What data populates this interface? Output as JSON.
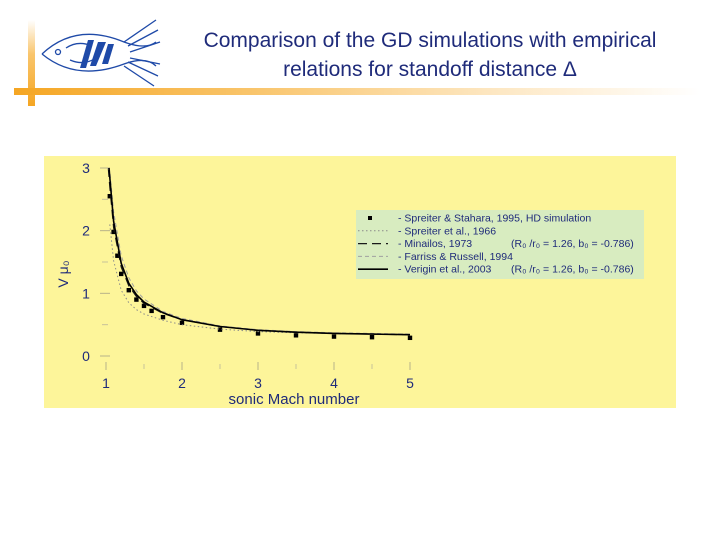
{
  "title": {
    "line1": "Comparison of the GD simulations with empirical",
    "line2": "relations for standoff distance Δ"
  },
  "colors": {
    "title": "#1f2b7a",
    "plot_background": "#fdf59a",
    "legend_background": "#d8ecc0",
    "accent_bar": "#f5a623"
  },
  "logo": {
    "icon": "fish-emblem-logo"
  },
  "chart_data": {
    "type": "line",
    "xlabel": "sonic Mach number",
    "ylabel": "V μ₀",
    "xlim": [
      1,
      5
    ],
    "ylim": [
      0,
      3
    ],
    "xticks": [
      1,
      2,
      3,
      4,
      5
    ],
    "yticks": [
      0,
      1,
      2,
      3
    ],
    "grid": false,
    "legend_position": "upper-right",
    "series": [
      {
        "name": "- Spreiter & Stahara, 1995, HD simulation",
        "style": "markers",
        "x": [
          1.05,
          1.1,
          1.15,
          1.2,
          1.3,
          1.4,
          1.5,
          1.6,
          1.75,
          2.0,
          2.5,
          3.0,
          3.5,
          4.0,
          4.5,
          5.0
        ],
        "y": [
          2.55,
          1.98,
          1.6,
          1.31,
          1.05,
          0.9,
          0.8,
          0.72,
          0.62,
          0.53,
          0.42,
          0.36,
          0.33,
          0.31,
          0.3,
          0.29
        ]
      },
      {
        "name": "- Spreiter et al., 1966",
        "style": "dotted",
        "x": [
          1.05,
          1.1,
          1.2,
          1.3,
          1.4,
          1.5,
          1.75,
          2.0,
          2.5,
          3.0,
          3.5,
          4.0,
          4.5,
          5.0
        ],
        "y": [
          2.1,
          1.52,
          1.05,
          0.85,
          0.74,
          0.67,
          0.57,
          0.5,
          0.43,
          0.39,
          0.37,
          0.36,
          0.35,
          0.35
        ]
      },
      {
        "name": "- Minailos, 1973",
        "params": "(R₀ /r₀ = 1.26, b₀ = -0.786)",
        "style": "long-dash",
        "x": [
          1.03,
          1.05,
          1.1,
          1.2,
          1.3,
          1.4,
          1.5,
          1.75,
          2.0,
          2.5,
          3.0,
          3.5,
          4.0,
          4.5,
          5.0
        ],
        "y": [
          3.0,
          2.7,
          2.05,
          1.42,
          1.12,
          0.95,
          0.84,
          0.68,
          0.58,
          0.47,
          0.41,
          0.38,
          0.36,
          0.35,
          0.34
        ]
      },
      {
        "name": "- Farriss & Russell, 1994",
        "style": "short-dash",
        "x": [
          1.02,
          1.05,
          1.1,
          1.2,
          1.3,
          1.4,
          1.5,
          1.75,
          2.0,
          2.5,
          3.0,
          3.5,
          4.0,
          4.5,
          5.0
        ],
        "y": [
          3.0,
          2.95,
          2.3,
          1.6,
          1.25,
          1.04,
          0.91,
          0.71,
          0.6,
          0.48,
          0.42,
          0.39,
          0.37,
          0.36,
          0.35
        ]
      },
      {
        "name": "- Verigin et al., 2003",
        "params": "(R₀ /r₀ = 1.26, b₀ = -0.786)",
        "style": "solid",
        "x": [
          1.04,
          1.05,
          1.1,
          1.2,
          1.3,
          1.4,
          1.5,
          1.75,
          2.0,
          2.5,
          3.0,
          3.5,
          4.0,
          4.5,
          5.0
        ],
        "y": [
          3.0,
          2.85,
          2.15,
          1.48,
          1.16,
          0.98,
          0.86,
          0.69,
          0.58,
          0.47,
          0.41,
          0.38,
          0.36,
          0.35,
          0.34
        ]
      }
    ]
  }
}
